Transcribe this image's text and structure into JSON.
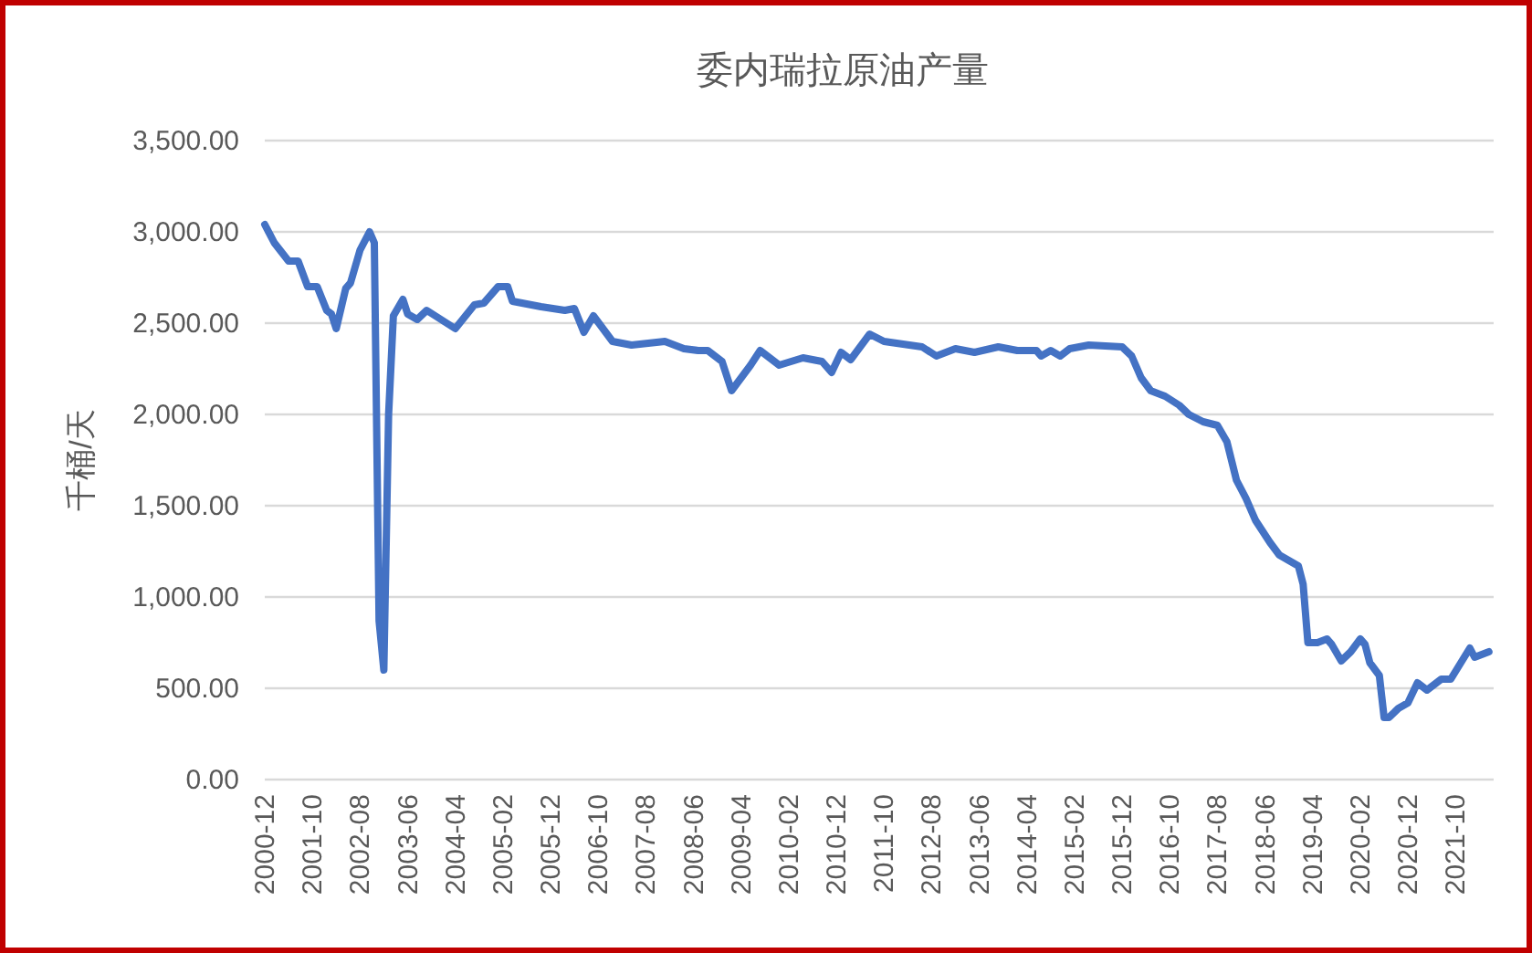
{
  "chart_data": {
    "type": "line",
    "title": "委内瑞拉原油产量",
    "ylabel": "千桶/天",
    "x": [
      "2000-12",
      "2001-02",
      "2001-05",
      "2001-07",
      "2001-09",
      "2001-11",
      "2002-01",
      "2002-02",
      "2002-03",
      "2002-05",
      "2002-06",
      "2002-08",
      "2002-10",
      "2002-11",
      "2002-12",
      "2003-01",
      "2003-02",
      "2003-03",
      "2003-05",
      "2003-06",
      "2003-08",
      "2003-10",
      "2004-04",
      "2004-08",
      "2004-10",
      "2005-01",
      "2005-03",
      "2005-04",
      "2005-10",
      "2006-03",
      "2006-05",
      "2006-07",
      "2006-09",
      "2006-11",
      "2007-01",
      "2007-05",
      "2007-12",
      "2008-04",
      "2008-07",
      "2008-09",
      "2008-12",
      "2009-02",
      "2009-06",
      "2009-08",
      "2009-12",
      "2010-05",
      "2010-09",
      "2010-11",
      "2011-01",
      "2011-03",
      "2011-07",
      "2011-10",
      "2012-06",
      "2012-09",
      "2013-01",
      "2013-05",
      "2013-10",
      "2014-02",
      "2014-06",
      "2014-07",
      "2014-09",
      "2014-11",
      "2015-01",
      "2015-05",
      "2015-12",
      "2016-02",
      "2016-04",
      "2016-06",
      "2016-09",
      "2016-12",
      "2017-02",
      "2017-05",
      "2017-08",
      "2017-10",
      "2017-12",
      "2018-02",
      "2018-04",
      "2018-07",
      "2018-09",
      "2019-01",
      "2019-02",
      "2019-03",
      "2019-05",
      "2019-07",
      "2019-08",
      "2019-10",
      "2019-12",
      "2020-02",
      "2020-03",
      "2020-04",
      "2020-06",
      "2020-07",
      "2020-08",
      "2020-10",
      "2020-12",
      "2021-02",
      "2021-04",
      "2021-07",
      "2021-09",
      "2022-01",
      "2022-02",
      "2022-05"
    ],
    "series": [
      {
        "color": "#4472c4",
        "values": [
          3040,
          2940,
          2840,
          2840,
          2700,
          2700,
          2570,
          2550,
          2470,
          2690,
          2720,
          2900,
          3000,
          2940,
          870,
          600,
          2000,
          2540,
          2630,
          2550,
          2520,
          2570,
          2470,
          2600,
          2610,
          2700,
          2700,
          2620,
          2590,
          2570,
          2580,
          2450,
          2540,
          2470,
          2400,
          2380,
          2400,
          2360,
          2350,
          2350,
          2290,
          2130,
          2270,
          2350,
          2270,
          2310,
          2290,
          2230,
          2340,
          2300,
          2440,
          2400,
          2370,
          2320,
          2360,
          2340,
          2370,
          2350,
          2350,
          2320,
          2350,
          2320,
          2360,
          2380,
          2370,
          2320,
          2200,
          2130,
          2100,
          2050,
          2000,
          1960,
          1940,
          1850,
          1640,
          1540,
          1420,
          1300,
          1230,
          1170,
          1070,
          750,
          750,
          770,
          740,
          650,
          700,
          770,
          740,
          640,
          570,
          340,
          340,
          390,
          420,
          530,
          490,
          550,
          550,
          720,
          670,
          700
        ]
      }
    ],
    "xlim": [
      "2000-12",
      "2022-06"
    ],
    "xticks": [
      "2000-12",
      "2001-10",
      "2002-08",
      "2003-06",
      "2004-04",
      "2005-02",
      "2005-12",
      "2006-10",
      "2007-08",
      "2008-06",
      "2009-04",
      "2010-02",
      "2010-12",
      "2011-10",
      "2012-08",
      "2013-06",
      "2014-04",
      "2015-02",
      "2015-12",
      "2016-10",
      "2017-08",
      "2018-06",
      "2019-04",
      "2020-02",
      "2020-12",
      "2021-10"
    ],
    "ylim": [
      0,
      3500
    ],
    "yticks": [
      {
        "value": 0,
        "label": "0.00"
      },
      {
        "value": 500,
        "label": "500.00"
      },
      {
        "value": 1000,
        "label": "1,000.00"
      },
      {
        "value": 1500,
        "label": "1,500.00"
      },
      {
        "value": 2000,
        "label": "2,000.00"
      },
      {
        "value": 2500,
        "label": "2,500.00"
      },
      {
        "value": 3000,
        "label": "3,000.00"
      },
      {
        "value": 3500,
        "label": "3,500.00"
      }
    ],
    "grid": "y",
    "line_style": "solid",
    "marker": "none"
  }
}
